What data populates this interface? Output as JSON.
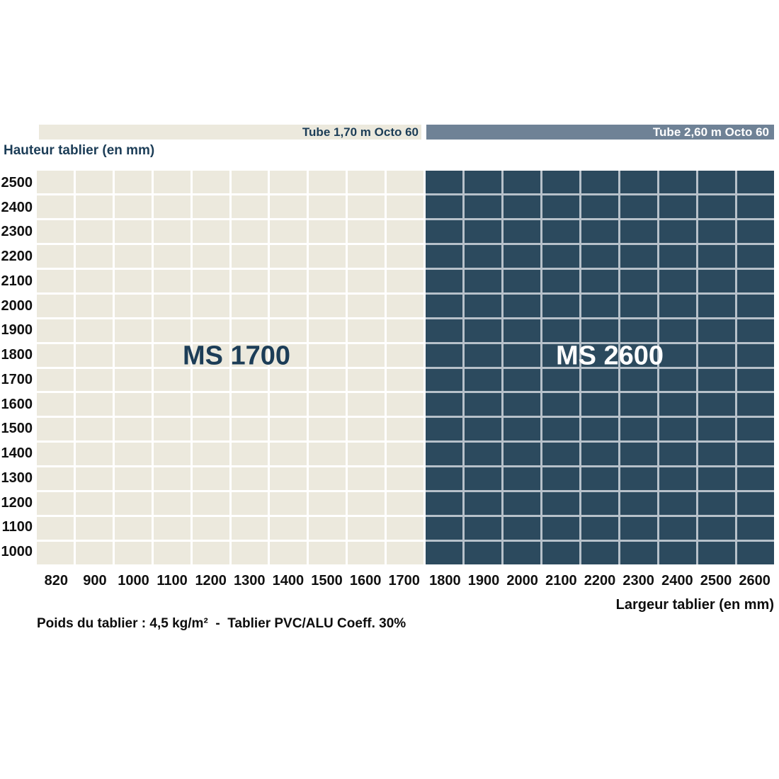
{
  "chart_data": {
    "type": "heatmap",
    "title": "",
    "xlabel": "Largeur tablier (en mm)",
    "ylabel": "Hauteur tablier (en mm)",
    "x_categories": [
      "820",
      "900",
      "1000",
      "1100",
      "1200",
      "1300",
      "1400",
      "1500",
      "1600",
      "1700",
      "1800",
      "1900",
      "2000",
      "2100",
      "2200",
      "2300",
      "2400",
      "2500",
      "2600"
    ],
    "y_categories": [
      "2500",
      "2400",
      "2300",
      "2200",
      "2100",
      "2000",
      "1900",
      "1800",
      "1700",
      "1600",
      "1500",
      "1400",
      "1300",
      "1200",
      "1100",
      "1000"
    ],
    "regions": [
      {
        "label": "MS 1700",
        "header": "Tube 1,70 m Octo 60",
        "columns": [
          "820",
          "900",
          "1000",
          "1100",
          "1200",
          "1300",
          "1400",
          "1500",
          "1600",
          "1700"
        ],
        "cell_color": "#ECE9DD",
        "gap_color": "#FFFFFF",
        "label_color": "#1C3D57",
        "header_bg": "#ECE9DD",
        "header_text_color": "#1C3D57"
      },
      {
        "label": "MS 2600",
        "header": "Tube 2,60 m Octo 60",
        "columns": [
          "1800",
          "1900",
          "2000",
          "2100",
          "2200",
          "2300",
          "2400",
          "2500",
          "2600"
        ],
        "cell_color": "#2C4A5E",
        "gap_color": "#B7C1CA",
        "label_color": "#FFFFFF",
        "header_bg": "#6F8296",
        "header_text_color": "#FFFFFF"
      }
    ],
    "footnote": "Poids du tablier : 4,5 kg/m²  -  Tablier PVC/ALU Coeff. 30%",
    "grid": true,
    "legend_position": "none",
    "colors": {
      "background": "#FFFFFF",
      "axis_text": "#111111",
      "navy_text": "#1C3D57"
    }
  }
}
